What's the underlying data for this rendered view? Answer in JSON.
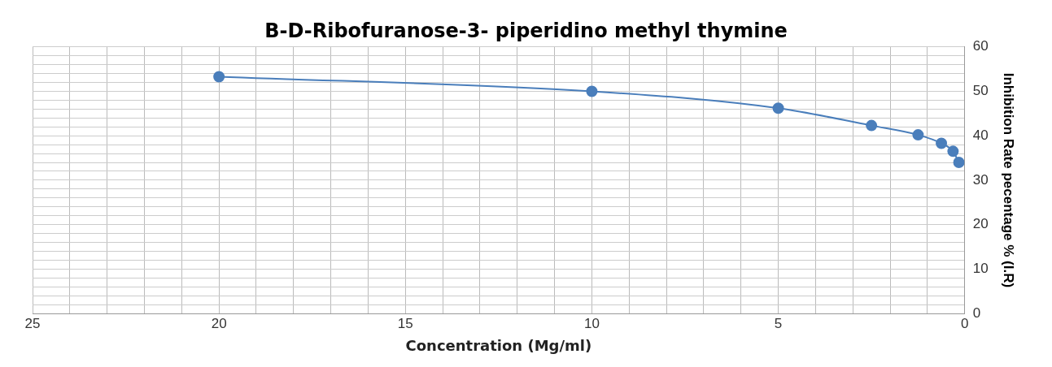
{
  "chart_data": {
    "type": "line",
    "title": "B-D-Ribofuranose-3- piperidino methyl thymine",
    "xlabel": "Concentration (Mg/ml)",
    "ylabel": "Inhibition Rate pecentage % (I.R)",
    "series": [
      {
        "color": "#4a7ebb",
        "x": [
          20,
          10,
          5,
          2.5,
          1.25,
          0.625,
          0.3125,
          0.156
        ],
        "values": [
          53.3,
          50,
          46.2,
          42.3,
          40.2,
          38.3,
          36.5,
          34
        ]
      }
    ],
    "xlim": [
      25,
      0
    ],
    "xticks": [
      25,
      {
        "value": 24,
        "label": null
      },
      {
        "value": 23,
        "label": null
      },
      {
        "value": 22,
        "label": null
      },
      {
        "value": 21,
        "label": null
      },
      20,
      {
        "value": 19,
        "label": null
      },
      {
        "value": 18,
        "label": null
      },
      {
        "value": 17,
        "label": null
      },
      {
        "value": 16,
        "label": null
      },
      15,
      {
        "value": 14,
        "label": null
      },
      {
        "value": 13,
        "label": null
      },
      {
        "value": 12,
        "label": null
      },
      {
        "value": 11,
        "label": null
      },
      10,
      {
        "value": 9,
        "label": null
      },
      {
        "value": 8,
        "label": null
      },
      {
        "value": 7,
        "label": null
      },
      {
        "value": 6,
        "label": null
      },
      5,
      {
        "value": 4,
        "label": null
      },
      {
        "value": 3,
        "label": null
      },
      {
        "value": 2,
        "label": null
      },
      {
        "value": 1,
        "label": null
      },
      0
    ],
    "ylim": [
      0,
      60
    ],
    "yticks": [
      0,
      {
        "value": 2,
        "label": null
      },
      {
        "value": 4,
        "label": null
      },
      {
        "value": 6,
        "label": null
      },
      {
        "value": 8,
        "label": null
      },
      10,
      {
        "value": 12,
        "label": null
      },
      {
        "value": 14,
        "label": null
      },
      {
        "value": 16,
        "label": null
      },
      {
        "value": 18,
        "label": null
      },
      20,
      {
        "value": 22,
        "label": null
      },
      {
        "value": 24,
        "label": null
      },
      {
        "value": 26,
        "label": null
      },
      {
        "value": 28,
        "label": null
      },
      30,
      {
        "value": 32,
        "label": null
      },
      {
        "value": 34,
        "label": null
      },
      {
        "value": 36,
        "label": null
      },
      {
        "value": 38,
        "label": null
      },
      40,
      {
        "value": 42,
        "label": null
      },
      {
        "value": 44,
        "label": null
      },
      {
        "value": 46,
        "label": null
      },
      {
        "value": 48,
        "label": null
      },
      50,
      {
        "value": 52,
        "label": null
      },
      {
        "value": 54,
        "label": null
      },
      {
        "value": 56,
        "label": null
      },
      {
        "value": 58,
        "label": null
      },
      60
    ],
    "grid": true,
    "legend": false,
    "marker": "circle",
    "line_style": "solid"
  }
}
